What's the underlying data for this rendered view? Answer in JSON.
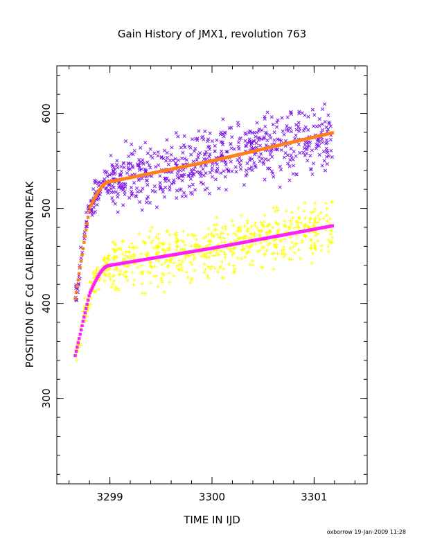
{
  "chart_data": {
    "type": "scatter",
    "title": "Gain History of JMX1, revolution 763",
    "xlabel": "TIME IN IJD",
    "ylabel": "POSITION OF Cd CALIBRATION PEAK",
    "xlim": [
      3298.48,
      3301.52
    ],
    "ylim": [
      210,
      650
    ],
    "xticks": [
      3299,
      3300,
      3301
    ],
    "yticks": [
      300,
      400,
      500,
      600
    ],
    "x_start": 3298.66,
    "x_end": 3301.18,
    "series": [
      {
        "marker": "x-scatter",
        "color": "#7b16e6",
        "model": "upper",
        "spread": 16
      },
      {
        "marker": "fit-curve",
        "color": "#ff7f1e",
        "model": "upper",
        "values_at": {
          "3298.66": 405,
          "3298.8": 500,
          "3299": 528,
          "3300": 550,
          "3301.18": 580
        }
      },
      {
        "marker": "plus-scatter",
        "color": "#ffff00",
        "model": "lower",
        "spread": 14
      },
      {
        "marker": "fit-curve",
        "color": "#ff1eff",
        "model": "lower",
        "values_at": {
          "3298.66": 345,
          "3298.8": 410,
          "3299": 440,
          "3300": 458,
          "3301.18": 480
        }
      }
    ]
  },
  "footer": {
    "stamp": "oxborrow 19-Jan-2009 11:28"
  }
}
